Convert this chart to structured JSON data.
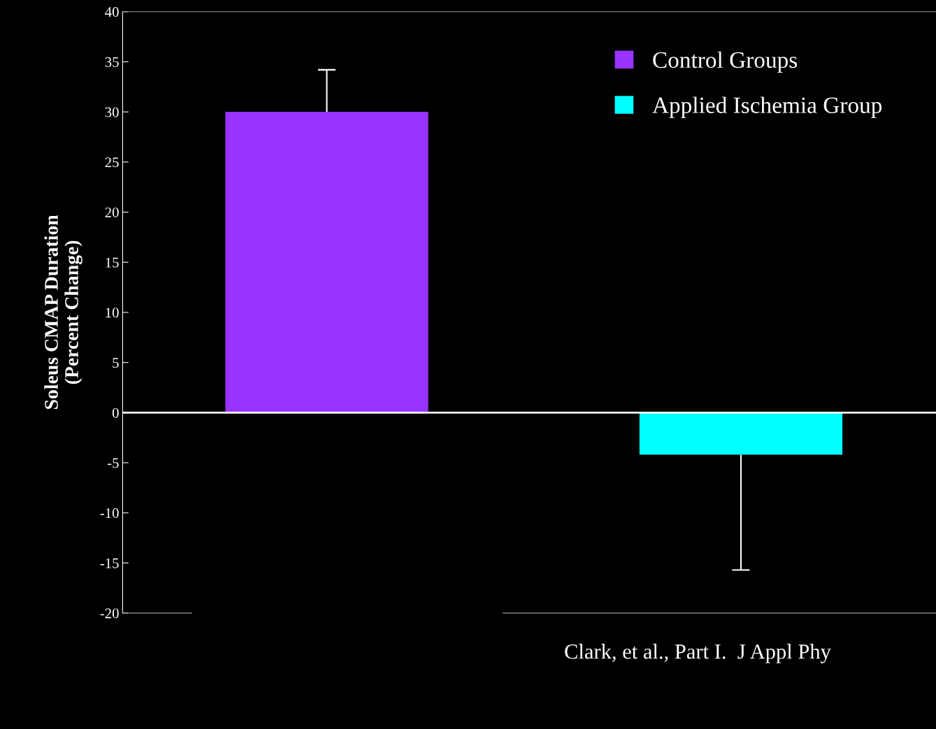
{
  "chart_data": {
    "type": "bar",
    "ylabel": "Soleus CMAP Duration\n(Percent Change)",
    "categories": [
      null,
      null
    ],
    "series": [
      {
        "name": "Control Groups",
        "color": "#9933ff",
        "values": [
          30,
          null
        ],
        "errors": [
          [
            30,
            34.2
          ],
          null
        ]
      },
      {
        "name": "Applied Ischemia Group",
        "color": "#00ffff",
        "values": [
          null,
          -4.2
        ],
        "errors": [
          null,
          [
            -15.7,
            -4.2
          ]
        ]
      }
    ],
    "ylim": [
      -20,
      40
    ],
    "yticks": [
      -20,
      -15,
      -10,
      -5,
      0,
      5,
      10,
      15,
      20,
      25,
      30,
      35,
      40
    ],
    "ref_lines": [
      {
        "axis": "y",
        "value": 0,
        "color": "#ffffff"
      }
    ],
    "annotations": [
      "Clark, et al., Part I.  J Appl Phy"
    ],
    "legend": "top right",
    "grid": false
  }
}
